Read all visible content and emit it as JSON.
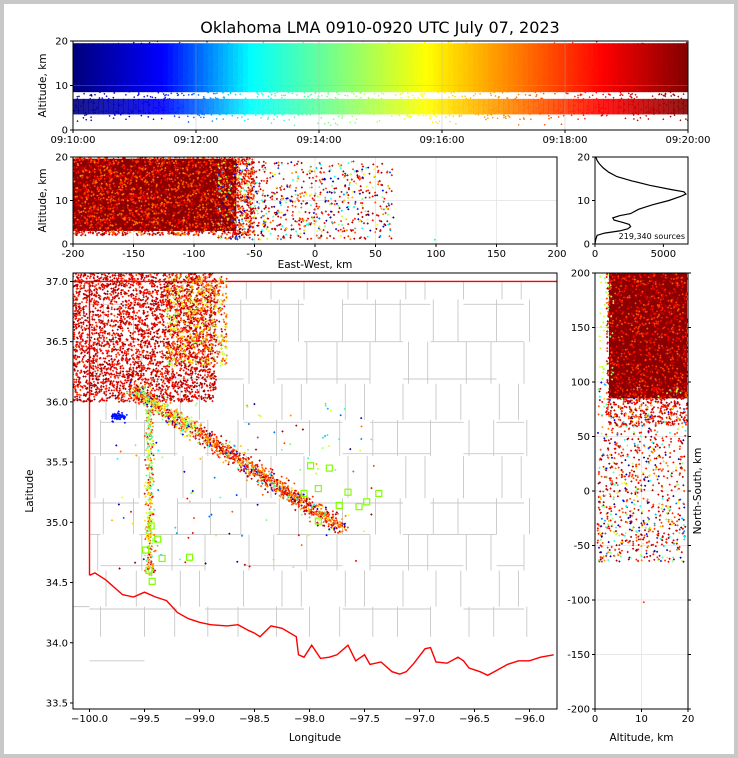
{
  "title": "Oklahoma LMA 0910-0920 UTC July 07, 2023",
  "chart_data": [
    {
      "id": "time-height",
      "type": "scatter",
      "xlabel": "",
      "ylabel": "Altitude, km",
      "x_tick_labels": [
        "09:10:00",
        "09:12:00",
        "09:14:00",
        "09:16:00",
        "09:18:00",
        "09:20:00"
      ],
      "xlim": [
        "09:10:00",
        "09:20:00"
      ],
      "ylim": [
        0,
        20
      ],
      "y_ticks": [
        0,
        10,
        20
      ],
      "color_by": "time",
      "colormap": [
        "#00007f",
        "#0000ff",
        "#00ffff",
        "#7fff7f",
        "#ffff00",
        "#ff7f00",
        "#ff0000",
        "#7f0000"
      ],
      "density_profile_km": [
        [
          1,
          0.02
        ],
        [
          2,
          0.1
        ],
        [
          3,
          0.6
        ],
        [
          4,
          0.8
        ],
        [
          6,
          0.55
        ],
        [
          8,
          0.75
        ],
        [
          10,
          0.9
        ],
        [
          12,
          1.0
        ],
        [
          14,
          0.8
        ],
        [
          16,
          0.55
        ],
        [
          18,
          0.35
        ],
        [
          20,
          0.2
        ]
      ]
    },
    {
      "id": "east-west-height",
      "type": "scatter",
      "xlabel": "East-West, km",
      "ylabel": "Altitude, km",
      "xlim": [
        -200,
        200
      ],
      "ylim": [
        0,
        20
      ],
      "x_ticks": [
        -200,
        -150,
        -100,
        -50,
        0,
        50,
        100,
        150,
        200
      ],
      "y_ticks": [
        0,
        10,
        20
      ],
      "grid": true,
      "color_by": "time",
      "core_extent_km": [
        -200,
        -55
      ],
      "sparse_extent_km": [
        -55,
        65
      ]
    },
    {
      "id": "altitude-histogram",
      "type": "line",
      "xlabel": "",
      "ylabel": "",
      "xlim": [
        0,
        6800
      ],
      "ylim": [
        0,
        20
      ],
      "x_ticks": [
        0,
        5000
      ],
      "y_ticks": [
        0,
        10,
        20
      ],
      "annotation": "219,340 sources",
      "points": [
        [
          0,
          0
        ],
        [
          50,
          1
        ],
        [
          150,
          2
        ],
        [
          700,
          2.5
        ],
        [
          1800,
          3
        ],
        [
          2400,
          3.5
        ],
        [
          2600,
          4
        ],
        [
          2500,
          4.5
        ],
        [
          2000,
          5
        ],
        [
          1400,
          5.5
        ],
        [
          1300,
          6
        ],
        [
          1800,
          6.5
        ],
        [
          2600,
          7
        ],
        [
          3200,
          8
        ],
        [
          4200,
          9
        ],
        [
          5400,
          10
        ],
        [
          6300,
          11
        ],
        [
          6650,
          11.5
        ],
        [
          6500,
          12
        ],
        [
          5600,
          12.5
        ],
        [
          4000,
          13.5
        ],
        [
          2700,
          14.5
        ],
        [
          1600,
          15.5
        ],
        [
          1000,
          16.5
        ],
        [
          600,
          17.5
        ],
        [
          300,
          18.5
        ],
        [
          150,
          19.2
        ],
        [
          60,
          20
        ]
      ]
    },
    {
      "id": "plan-view",
      "type": "scatter",
      "xlabel": "Longitude",
      "ylabel": "Latitude",
      "xlim": [
        -100.15,
        -95.75
      ],
      "ylim": [
        33.45,
        37.07
      ],
      "x_ticks": [
        -100.0,
        -99.5,
        -99.0,
        -98.5,
        -98.0,
        -97.5,
        -97.0,
        -96.5,
        -96.0
      ],
      "y_ticks": [
        33.5,
        34.0,
        34.5,
        35.0,
        35.5,
        36.0,
        36.5,
        37.0
      ],
      "x_tick_labels": [
        "−100.0",
        "−99.5",
        "−99.0",
        "−98.5",
        "−98.0",
        "−97.5",
        "−97.0",
        "−96.5",
        "−96.0"
      ],
      "y_tick_labels": [
        "33.5",
        "34.0",
        "34.5",
        "35.0",
        "35.5",
        "36.0",
        "36.5",
        "37.0"
      ],
      "color_by": "time",
      "state_border_color": "#ff0000",
      "county_line_color": "#c8c8c8",
      "stations_color": "#7fff00",
      "stations": [
        [
          -99.44,
          34.97
        ],
        [
          -99.38,
          34.86
        ],
        [
          -99.49,
          34.77
        ],
        [
          -99.46,
          34.6
        ],
        [
          -99.43,
          34.51
        ],
        [
          -99.34,
          34.7
        ],
        [
          -99.09,
          34.71
        ],
        [
          -98.05,
          35.24
        ],
        [
          -97.99,
          35.47
        ],
        [
          -97.92,
          35.28
        ],
        [
          -97.82,
          35.45
        ],
        [
          -97.73,
          35.14
        ],
        [
          -97.65,
          35.25
        ],
        [
          -97.55,
          35.13
        ],
        [
          -97.48,
          35.17
        ],
        [
          -97.37,
          35.24
        ],
        [
          -97.92,
          35.01
        ]
      ]
    },
    {
      "id": "north-south-height",
      "type": "scatter",
      "xlabel": "Altitude, km",
      "ylabel": "North-South, km",
      "xlim": [
        0,
        20
      ],
      "ylim": [
        -200,
        200
      ],
      "x_ticks": [
        0,
        10,
        20
      ],
      "y_ticks": [
        -200,
        -150,
        -100,
        -50,
        0,
        50,
        100,
        150,
        200
      ],
      "grid": true,
      "color_by": "time"
    }
  ]
}
